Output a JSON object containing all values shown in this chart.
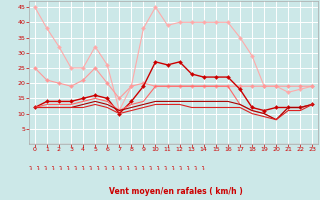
{
  "x": [
    0,
    1,
    2,
    3,
    4,
    5,
    6,
    7,
    8,
    9,
    10,
    11,
    12,
    13,
    14,
    15,
    16,
    17,
    18,
    19,
    20,
    21,
    22,
    23
  ],
  "lines": [
    {
      "y": [
        45,
        38,
        32,
        25,
        25,
        32,
        26,
        11,
        19,
        38,
        45,
        39,
        40,
        40,
        40,
        40,
        40,
        35,
        29,
        19,
        19,
        17,
        18,
        19
      ],
      "color": "#ffaaaa",
      "lw": 0.8,
      "marker": "D",
      "ms": 2.0
    },
    {
      "y": [
        25,
        21,
        20,
        19,
        21,
        25,
        20,
        15,
        19,
        20,
        19,
        19,
        19,
        19,
        19,
        19,
        19,
        19,
        19,
        19,
        19,
        19,
        19,
        19
      ],
      "color": "#ff9999",
      "lw": 0.8,
      "marker": "D",
      "ms": 2.0
    },
    {
      "y": [
        12,
        14,
        14,
        14,
        15,
        16,
        15,
        10,
        14,
        19,
        27,
        26,
        27,
        23,
        22,
        22,
        22,
        18,
        12,
        11,
        12,
        12,
        12,
        13
      ],
      "color": "#cc0000",
      "lw": 1.0,
      "marker": "D",
      "ms": 2.0
    },
    {
      "y": [
        12,
        13,
        13,
        13,
        14,
        15,
        14,
        11,
        13,
        14,
        19,
        19,
        19,
        19,
        19,
        19,
        19,
        13,
        11,
        10,
        8,
        12,
        12,
        13
      ],
      "color": "#ff6666",
      "lw": 0.8,
      "marker": null,
      "ms": 0
    },
    {
      "y": [
        12,
        12,
        12,
        12,
        13,
        14,
        13,
        11,
        12,
        13,
        14,
        14,
        14,
        14,
        14,
        14,
        14,
        13,
        11,
        10,
        8,
        12,
        12,
        13
      ],
      "color": "#aa0000",
      "lw": 0.8,
      "marker": null,
      "ms": 0
    },
    {
      "y": [
        12,
        12,
        12,
        12,
        12,
        13,
        12,
        10,
        11,
        12,
        13,
        13,
        13,
        12,
        12,
        12,
        12,
        12,
        10,
        9,
        8,
        11,
        11,
        13
      ],
      "color": "#dd2222",
      "lw": 0.8,
      "marker": null,
      "ms": 0
    }
  ],
  "xlabel": "Vent moyen/en rafales ( km/h )",
  "ylim": [
    0,
    47
  ],
  "xlim": [
    -0.5,
    23.5
  ],
  "yticks": [
    5,
    10,
    15,
    20,
    25,
    30,
    35,
    40,
    45
  ],
  "xticks": [
    0,
    1,
    2,
    3,
    4,
    5,
    6,
    7,
    8,
    9,
    10,
    11,
    12,
    13,
    14,
    15,
    16,
    17,
    18,
    19,
    20,
    21,
    22,
    23
  ],
  "bg_color": "#cce8e8",
  "grid_color": "#ffffff",
  "tick_color": "#cc0000",
  "label_color": "#cc0000",
  "arrow_char": "↴"
}
